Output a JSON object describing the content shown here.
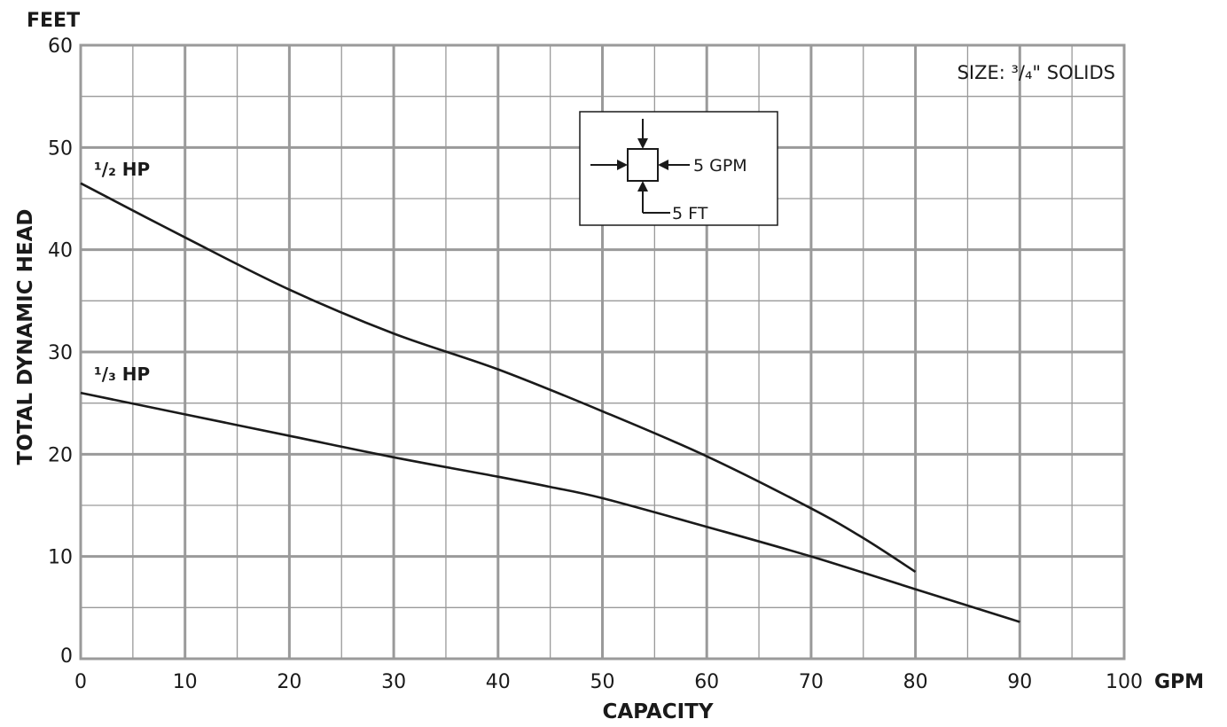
{
  "chart_data": {
    "type": "line",
    "xlabel": "CAPACITY",
    "ylabel": "TOTAL DYNAMIC HEAD",
    "x_unit": "GPM",
    "y_unit": "FEET",
    "xlim": [
      0,
      100
    ],
    "ylim": [
      0,
      60
    ],
    "x_ticks": [
      0,
      10,
      20,
      30,
      40,
      50,
      60,
      70,
      80,
      90,
      100
    ],
    "y_ticks": [
      0,
      10,
      20,
      30,
      40,
      50,
      60
    ],
    "grid": true,
    "size_note": "SIZE: ³/₄\" SOLIDS",
    "scale_box": {
      "gpm_label": "5 GPM",
      "ft_label": "5 FT"
    },
    "series": [
      {
        "name": "¹/₂ HP",
        "x": [
          0,
          10,
          20,
          30,
          40,
          50,
          60,
          70,
          75,
          80
        ],
        "y": [
          46.5,
          41.2,
          36.1,
          31.8,
          28.3,
          24.2,
          19.8,
          14.7,
          11.8,
          8.5
        ]
      },
      {
        "name": "¹/₃ HP",
        "x": [
          0,
          10,
          20,
          30,
          40,
          45,
          50,
          60,
          70,
          80,
          90
        ],
        "y": [
          26,
          23.9,
          21.8,
          19.7,
          17.8,
          16.8,
          15.7,
          12.9,
          10,
          6.8,
          3.6
        ]
      }
    ],
    "colors": {
      "grid": "#9a9a9a",
      "line": "#1a1a1a"
    }
  }
}
